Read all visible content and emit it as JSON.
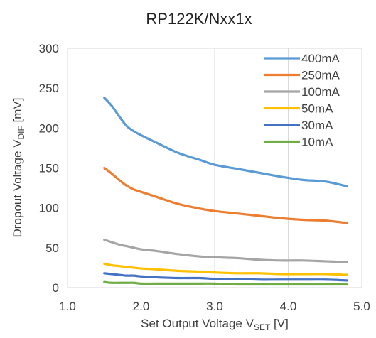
{
  "chart_data": {
    "type": "line",
    "title": "RP122K/Nxx1x",
    "xlabel": {
      "main": "Set Output Voltage V",
      "sub": "SET",
      "unit": " [V]"
    },
    "ylabel": {
      "main": "Dropout Voltage V",
      "sub": "DIF",
      "unit": " [mV]"
    },
    "xlim": [
      1.0,
      5.0
    ],
    "ylim": [
      0,
      300
    ],
    "xticks": [
      1.0,
      2.0,
      3.0,
      4.0,
      5.0
    ],
    "xtick_labels": [
      "1.0",
      "2.0",
      "3.0",
      "4.0",
      "5.0"
    ],
    "yticks": [
      0,
      50,
      100,
      150,
      200,
      250,
      300
    ],
    "ytick_labels": [
      "0",
      "50",
      "100",
      "150",
      "200",
      "250",
      "300"
    ],
    "grid": "vertical",
    "legend": "top-right",
    "x": [
      1.5,
      1.6,
      1.7,
      1.8,
      1.9,
      2.0,
      2.2,
      2.5,
      2.8,
      3.0,
      3.3,
      3.6,
      3.9,
      4.2,
      4.5,
      4.8
    ],
    "series": [
      {
        "name": "400mA",
        "color": "#5B9BD5",
        "values": [
          238,
          228,
          215,
          203,
          196,
          191,
          182,
          169,
          160,
          154,
          149,
          144,
          139,
          135,
          133,
          127
        ]
      },
      {
        "name": "250mA",
        "color": "#ED7D31",
        "values": [
          150,
          143,
          135,
          128,
          123,
          120,
          114,
          105,
          99,
          96,
          93,
          90,
          87,
          85,
          84,
          81
        ]
      },
      {
        "name": "100mA",
        "color": "#A5A5A5",
        "values": [
          60,
          57,
          54,
          52,
          50,
          48,
          46,
          42,
          39,
          38,
          37,
          35,
          34,
          34,
          33,
          32
        ]
      },
      {
        "name": "50mA",
        "color": "#FFC000",
        "values": [
          30,
          28,
          27,
          26,
          25,
          24,
          23,
          21,
          20,
          19,
          18,
          18,
          17,
          17,
          17,
          16
        ]
      },
      {
        "name": "30mA",
        "color": "#4472C4",
        "values": [
          18,
          17,
          16,
          15,
          15,
          14,
          13,
          12,
          12,
          11,
          11,
          10,
          10,
          10,
          10,
          9
        ]
      },
      {
        "name": "10mA",
        "color": "#70AD47",
        "values": [
          7,
          6,
          6,
          6,
          6,
          5,
          5,
          5,
          5,
          5,
          4,
          4,
          4,
          4,
          4,
          4
        ]
      }
    ]
  }
}
